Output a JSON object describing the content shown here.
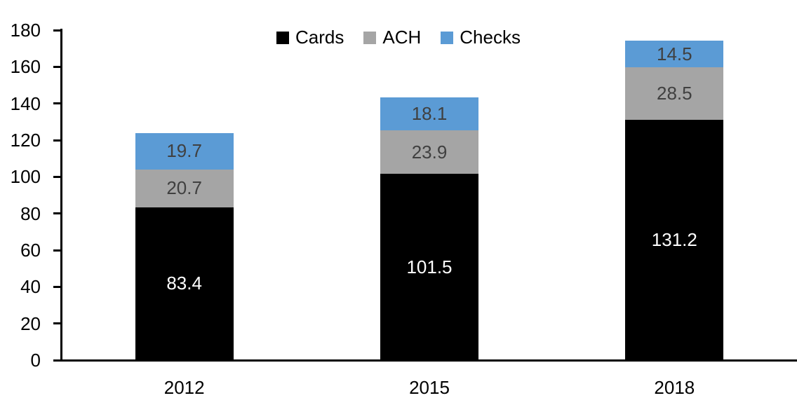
{
  "chart_data": {
    "type": "bar",
    "stacked": true,
    "title": "",
    "categories": [
      "2012",
      "2015",
      "2018"
    ],
    "series": [
      {
        "name": "Cards",
        "color": "#000000",
        "label_color": "#FFFFFF",
        "values": [
          83.4,
          101.5,
          131.2
        ]
      },
      {
        "name": "ACH",
        "color": "#A5A5A5",
        "label_color": "#404040",
        "values": [
          20.7,
          23.9,
          28.5
        ]
      },
      {
        "name": "Checks",
        "color": "#5B9BD5",
        "label_color": "#404040",
        "values": [
          19.7,
          18.1,
          14.5
        ]
      }
    ],
    "totals": [
      123.8,
      143.5,
      174.2
    ],
    "ylim": [
      0,
      180
    ],
    "yticks": [
      0,
      20,
      40,
      60,
      80,
      100,
      120,
      140,
      160,
      180
    ],
    "legend": [
      "Cards",
      "ACH",
      "Checks"
    ],
    "legend_position": "top-center",
    "grid": false,
    "axis_color": "#000000",
    "background_color": "#FFFFFF"
  }
}
